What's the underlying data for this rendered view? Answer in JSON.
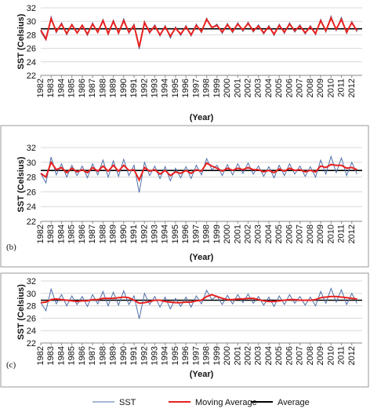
{
  "legend": [
    {
      "name": "SST",
      "color": "#4f6fa8"
    },
    {
      "name": "Moving Average",
      "color": "#e8211f"
    },
    {
      "name": "Average",
      "color": "#000000"
    }
  ],
  "chart_data": [
    {
      "type": "line",
      "ylabel": "SST (Celsius)",
      "xlabel": "(Year)",
      "x": [
        1982,
        1982.5,
        1983,
        1983.5,
        1984,
        1984.5,
        1985,
        1985.5,
        1986,
        1986.5,
        1987,
        1987.5,
        1988,
        1988.5,
        1989,
        1989.5,
        1990,
        1990.5,
        1991,
        1991.5,
        1992,
        1992.5,
        1993,
        1993.5,
        1994,
        1994.5,
        1995,
        1995.5,
        1996,
        1996.5,
        1997,
        1997.5,
        1998,
        1998.5,
        1999,
        1999.5,
        2000,
        2000.5,
        2001,
        2001.5,
        2002,
        2002.5,
        2003,
        2003.5,
        2004,
        2004.5,
        2005,
        2005.5,
        2006,
        2006.5,
        2007,
        2007.5,
        2008,
        2008.5,
        2009,
        2009.5,
        2010,
        2010.5,
        2011,
        2011.5,
        2012,
        2012.5
      ],
      "series": [
        {
          "values": [
            28.5,
            27.2,
            30.7,
            28.3,
            29.8,
            28.0,
            29.6,
            28.2,
            29.5,
            27.9,
            29.8,
            28.3,
            30.3,
            28.0,
            30.2,
            28.1,
            30.4,
            28.2,
            29.6,
            25.9,
            30.0,
            28.2,
            29.5,
            27.8,
            29.4,
            27.5,
            29.2,
            27.9,
            29.4,
            27.8,
            29.6,
            28.3,
            30.5,
            29.0,
            29.6,
            28.2,
            29.7,
            28.3,
            29.8,
            28.5,
            29.9,
            28.4,
            29.5,
            28.1,
            29.4,
            27.9,
            29.6,
            28.2,
            29.8,
            28.4,
            29.5,
            28.1,
            29.4,
            28.0,
            30.3,
            28.4,
            30.8,
            28.6,
            30.6,
            28.2,
            30.0,
            28.4
          ]
        },
        {
          "values": [
            28.7,
            27.4,
            30.4,
            28.5,
            29.6,
            28.2,
            29.5,
            28.3,
            29.4,
            28.1,
            29.6,
            28.4,
            30.1,
            28.2,
            30.0,
            28.3,
            30.1,
            28.4,
            29.4,
            26.2,
            29.8,
            28.4,
            29.3,
            28.0,
            29.2,
            27.8,
            29.0,
            28.1,
            29.2,
            28.0,
            29.4,
            28.5,
            30.3,
            29.1,
            29.4,
            28.4,
            29.5,
            28.5,
            29.6,
            28.7,
            29.7,
            28.6,
            29.3,
            28.3,
            29.2,
            28.1,
            29.4,
            28.4,
            29.6,
            28.6,
            29.3,
            28.3,
            29.2,
            28.2,
            30.1,
            28.6,
            30.5,
            28.8,
            30.3,
            28.4,
            29.8,
            28.6
          ]
        }
      ],
      "average": 28.9,
      "ylim": [
        22,
        32
      ],
      "yticks": [
        22,
        24,
        26,
        28,
        30,
        32
      ],
      "xlim": [
        1982,
        2013
      ],
      "xticks": [
        1982,
        1983,
        1984,
        1985,
        1986,
        1987,
        1988,
        1989,
        1990,
        1991,
        1992,
        1993,
        1994,
        1995,
        1996,
        1997,
        1998,
        1999,
        2000,
        2001,
        2002,
        2003,
        2004,
        2005,
        2006,
        2007,
        2008,
        2009,
        2010,
        2011,
        2012
      ],
      "grid": true
    },
    {
      "type": "line",
      "panel_label": "(b)",
      "ylabel": "SST (Celsius)",
      "xlabel": "(Year)",
      "x": [
        1982,
        1982.5,
        1983,
        1983.5,
        1984,
        1984.5,
        1985,
        1985.5,
        1986,
        1986.5,
        1987,
        1987.5,
        1988,
        1988.5,
        1989,
        1989.5,
        1990,
        1990.5,
        1991,
        1991.5,
        1992,
        1992.5,
        1993,
        1993.5,
        1994,
        1994.5,
        1995,
        1995.5,
        1996,
        1996.5,
        1997,
        1997.5,
        1998,
        1998.5,
        1999,
        1999.5,
        2000,
        2000.5,
        2001,
        2001.5,
        2002,
        2002.5,
        2003,
        2003.5,
        2004,
        2004.5,
        2005,
        2005.5,
        2006,
        2006.5,
        2007,
        2007.5,
        2008,
        2008.5,
        2009,
        2009.5,
        2010,
        2010.5,
        2011,
        2011.5,
        2012,
        2012.5
      ],
      "series": [
        {
          "values": [
            28.5,
            27.2,
            30.7,
            28.3,
            29.8,
            28.0,
            29.6,
            28.2,
            29.5,
            27.9,
            29.8,
            28.3,
            30.3,
            28.0,
            30.2,
            28.1,
            30.4,
            28.2,
            29.6,
            25.9,
            30.0,
            28.2,
            29.5,
            27.8,
            29.4,
            27.5,
            29.2,
            27.9,
            29.4,
            27.8,
            29.6,
            28.3,
            30.5,
            29.0,
            29.6,
            28.2,
            29.7,
            28.3,
            29.8,
            28.5,
            29.9,
            28.4,
            29.5,
            28.1,
            29.4,
            27.9,
            29.6,
            28.2,
            29.8,
            28.4,
            29.5,
            28.1,
            29.4,
            28.0,
            30.3,
            28.4,
            30.8,
            28.6,
            30.6,
            28.2,
            30.0,
            28.4
          ]
        },
        {
          "values": [
            28.5,
            28.0,
            30.0,
            29.0,
            29.3,
            28.6,
            29.2,
            28.7,
            29.0,
            28.6,
            29.3,
            28.8,
            29.5,
            28.8,
            29.6,
            28.8,
            29.6,
            28.9,
            29.0,
            27.6,
            29.3,
            28.8,
            29.0,
            28.4,
            28.9,
            28.2,
            28.7,
            28.5,
            28.9,
            28.5,
            29.0,
            28.8,
            29.9,
            29.5,
            29.2,
            28.8,
            29.2,
            28.9,
            29.2,
            29.0,
            29.3,
            29.0,
            29.0,
            28.7,
            28.9,
            28.6,
            29.1,
            28.8,
            29.2,
            28.9,
            29.0,
            28.7,
            28.9,
            28.7,
            29.5,
            29.3,
            29.7,
            29.6,
            29.6,
            29.2,
            29.3,
            29.0
          ]
        }
      ],
      "average": 28.9,
      "ylim": [
        22,
        32
      ],
      "yticks": [
        22,
        24,
        26,
        28,
        30,
        32
      ],
      "xlim": [
        1982,
        2013
      ],
      "xticks": [
        1982,
        1983,
        1984,
        1985,
        1986,
        1987,
        1988,
        1989,
        1990,
        1991,
        1992,
        1993,
        1994,
        1995,
        1996,
        1997,
        1998,
        1999,
        2000,
        2001,
        2002,
        2003,
        2004,
        2005,
        2006,
        2007,
        2008,
        2009,
        2010,
        2011,
        2012
      ],
      "grid": true
    },
    {
      "type": "line",
      "panel_label": "(c)",
      "ylabel": "SST (Celsius)",
      "xlabel": "(Year)",
      "x": [
        1982,
        1982.5,
        1983,
        1983.5,
        1984,
        1984.5,
        1985,
        1985.5,
        1986,
        1986.5,
        1987,
        1987.5,
        1988,
        1988.5,
        1989,
        1989.5,
        1990,
        1990.5,
        1991,
        1991.5,
        1992,
        1992.5,
        1993,
        1993.5,
        1994,
        1994.5,
        1995,
        1995.5,
        1996,
        1996.5,
        1997,
        1997.5,
        1998,
        1998.5,
        1999,
        1999.5,
        2000,
        2000.5,
        2001,
        2001.5,
        2002,
        2002.5,
        2003,
        2003.5,
        2004,
        2004.5,
        2005,
        2005.5,
        2006,
        2006.5,
        2007,
        2007.5,
        2008,
        2008.5,
        2009,
        2009.5,
        2010,
        2010.5,
        2011,
        2011.5,
        2012,
        2012.5
      ],
      "series": [
        {
          "values": [
            28.5,
            27.2,
            30.7,
            28.3,
            29.8,
            28.0,
            29.6,
            28.2,
            29.5,
            27.9,
            29.8,
            28.3,
            30.3,
            28.0,
            30.2,
            28.1,
            30.4,
            28.2,
            29.6,
            25.9,
            30.0,
            28.2,
            29.5,
            27.8,
            29.4,
            27.5,
            29.2,
            27.9,
            29.4,
            27.8,
            29.6,
            28.3,
            30.5,
            29.0,
            29.6,
            28.2,
            29.7,
            28.3,
            29.8,
            28.5,
            29.9,
            28.4,
            29.5,
            28.1,
            29.4,
            27.9,
            29.6,
            28.2,
            29.8,
            28.4,
            29.5,
            28.1,
            29.4,
            28.0,
            30.3,
            28.4,
            30.8,
            28.6,
            30.6,
            28.2,
            30.0,
            28.4
          ]
        },
        {
          "values": [
            28.5,
            28.6,
            29.0,
            29.1,
            29.0,
            28.9,
            28.8,
            28.7,
            28.8,
            28.8,
            29.0,
            29.0,
            29.2,
            29.2,
            29.2,
            29.3,
            29.4,
            29.3,
            28.9,
            28.4,
            28.5,
            28.7,
            28.9,
            28.9,
            28.7,
            28.6,
            28.5,
            28.5,
            28.6,
            28.6,
            28.8,
            28.9,
            29.5,
            29.8,
            29.5,
            29.2,
            29.0,
            29.0,
            29.1,
            29.1,
            29.2,
            29.2,
            29.0,
            28.8,
            28.7,
            28.7,
            28.8,
            28.9,
            29.0,
            29.0,
            28.9,
            28.9,
            28.9,
            29.0,
            29.3,
            29.4,
            29.5,
            29.5,
            29.4,
            29.3,
            29.2,
            29.1
          ]
        }
      ],
      "average": 28.9,
      "ylim": [
        22,
        32
      ],
      "yticks": [
        22,
        24,
        26,
        28,
        30,
        32
      ],
      "xlim": [
        1982,
        2013
      ],
      "xticks": [
        1982,
        1983,
        1984,
        1985,
        1986,
        1987,
        1988,
        1989,
        1990,
        1991,
        1992,
        1993,
        1994,
        1995,
        1996,
        1997,
        1998,
        1999,
        2000,
        2001,
        2002,
        2003,
        2004,
        2005,
        2006,
        2007,
        2008,
        2009,
        2010,
        2011,
        2012
      ],
      "grid": true
    }
  ]
}
